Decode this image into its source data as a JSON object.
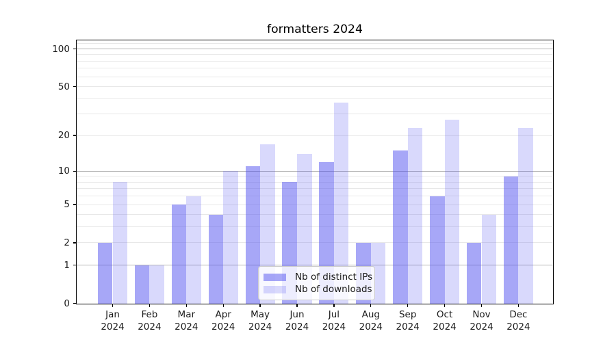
{
  "figure": {
    "title": "formatters 2024"
  },
  "legend": {
    "position": "lower center",
    "items": [
      {
        "label": "Nb of distinct IPs",
        "color_hex_on_white": "#a7a7f3",
        "color_rgba": "rgba(80,80,240,0.50)"
      },
      {
        "label": "Nb of downloads",
        "color_hex_on_white": "#d8d8fb",
        "color_rgba": "rgba(80,80,240,0.22)"
      }
    ]
  },
  "chart_data": {
    "type": "bar",
    "title": "formatters 2024",
    "xlabel": "",
    "ylabel": "",
    "yscale": "log1p",
    "grid": true,
    "categories": [
      "Jan 2024",
      "Feb 2024",
      "Mar 2024",
      "Apr 2024",
      "May 2024",
      "Jun 2024",
      "Jul 2024",
      "Aug 2024",
      "Sep 2024",
      "Oct 2024",
      "Nov 2024",
      "Dec 2024"
    ],
    "month_labels": [
      "Jan",
      "Feb",
      "Mar",
      "Apr",
      "May",
      "Jun",
      "Jul",
      "Aug",
      "Sep",
      "Oct",
      "Nov",
      "Dec"
    ],
    "year_label": "2024",
    "series": [
      {
        "name": "Nb of distinct IPs",
        "values": [
          2,
          1,
          5,
          4,
          11,
          8,
          12,
          2,
          15,
          6,
          2,
          9
        ]
      },
      {
        "name": "Nb of downloads",
        "values": [
          8,
          1,
          6,
          10,
          17,
          14,
          37,
          2,
          23,
          27,
          4,
          23
        ]
      }
    ],
    "y_ticks": [
      0,
      1,
      2,
      5,
      10,
      20,
      50,
      100
    ],
    "y_tick_labels": [
      "0",
      "1",
      "2",
      "5",
      "10",
      "20",
      "50",
      "100"
    ],
    "ylim": [
      0,
      117
    ],
    "grid_major": [
      1,
      10,
      100
    ],
    "grid_minor": [
      2,
      3,
      4,
      5,
      6,
      7,
      8,
      9,
      20,
      30,
      40,
      50,
      60,
      70,
      80,
      90,
      110
    ],
    "legend_position": "lower center"
  }
}
